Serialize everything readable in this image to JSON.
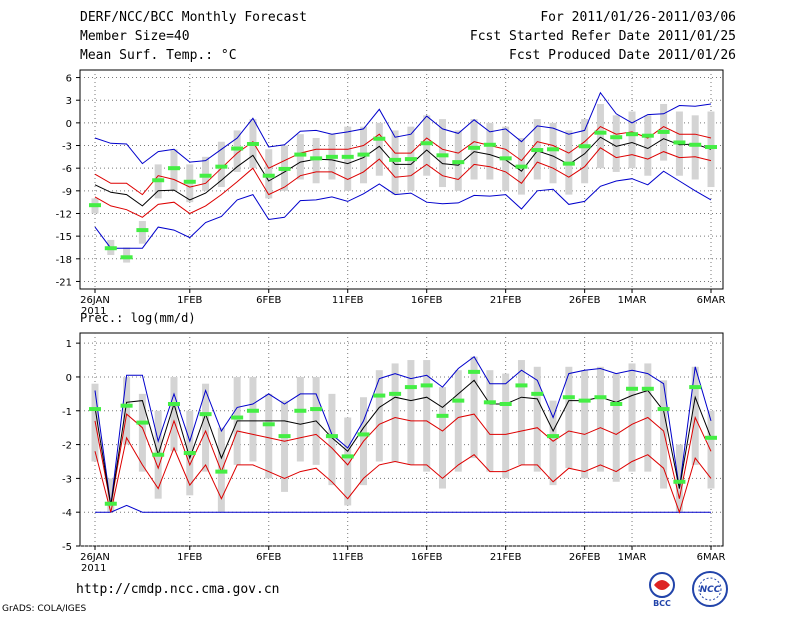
{
  "header": {
    "title": "DERF/NCC/BCC Monthly Forecast",
    "member_size": "Member Size=40",
    "variable": "Mean Surf. Temp.: °C",
    "period": "For 2011/01/26-2011/03/06",
    "started": "Fcst Started Refer Date 2011/01/25",
    "produced": "Fcst Produced Date 2011/01/26"
  },
  "footer": {
    "url": "http://cmdp.ncc.cma.gov.cn",
    "credit": "GrADS: COLA/IGES",
    "logo_bcc": "BCC",
    "logo_ncc": "NCC"
  },
  "colors": {
    "box": "#d4d4d4",
    "median": "#44ee44",
    "mean": "#000000",
    "inner": "#dd0000",
    "outer": "#0000cc",
    "grid": "#777777"
  },
  "chart_data": [
    {
      "type": "box",
      "title": "Mean Surf. Temp.: °C",
      "ylim": [
        -22,
        7
      ],
      "yticks": [
        6,
        3,
        0,
        -3,
        -6,
        -9,
        -12,
        -15,
        -18,
        -21
      ],
      "xtick_labels": [
        {
          "day": 0,
          "label": "26JAN",
          "sub": "2011"
        },
        {
          "day": 6,
          "label": "1FEB"
        },
        {
          "day": 11,
          "label": "6FEB"
        },
        {
          "day": 16,
          "label": "11FEB"
        },
        {
          "day": 21,
          "label": "16FEB"
        },
        {
          "day": 26,
          "label": "21FEB"
        },
        {
          "day": 31,
          "label": "26FEB"
        },
        {
          "day": 34,
          "label": "1MAR"
        },
        {
          "day": 39,
          "label": "6MAR"
        }
      ],
      "median": [
        -10.9,
        -16.6,
        -17.8,
        -14.2,
        -7.6,
        -6,
        -7.8,
        -7,
        -5.8,
        -3.4,
        -2.8,
        -7,
        -6.1,
        -4.2,
        -4.7,
        -4.5,
        -4.5,
        -4.2,
        -2.1,
        -4.9,
        -4.8,
        -2.7,
        -4.3,
        -5.2,
        -3.3,
        -2.9,
        -4.7,
        -5.8,
        -3.6,
        -3.5,
        -5.4,
        -3.1,
        -1.3,
        -1.9,
        -1.5,
        -1.7,
        -1.2,
        -2.6,
        -2.9,
        -3.2
      ],
      "box_low": [
        -12,
        -17.5,
        -18.5,
        -16,
        -10,
        -9,
        -10.5,
        -9,
        -8.5,
        -6.5,
        -6,
        -10,
        -9,
        -7.5,
        -8,
        -7.5,
        -9,
        -8,
        -7,
        -9.5,
        -9,
        -7,
        -8.5,
        -9,
        -7.5,
        -7.5,
        -9,
        -9.5,
        -7.5,
        -8,
        -9.5,
        -8,
        -6,
        -6.5,
        -6,
        -7,
        -5,
        -7,
        -7.5,
        -8.5
      ],
      "box_high": [
        -10,
        -15.5,
        -16.5,
        -13,
        -5.5,
        -3.5,
        -5.5,
        -4.5,
        -2.5,
        -1,
        0.5,
        -3.5,
        -3,
        -1.5,
        -2,
        -1.5,
        -0.5,
        -0.5,
        0,
        -1,
        -0.5,
        1,
        0.5,
        -1,
        0.5,
        0,
        -0.5,
        -2,
        0.5,
        0,
        -1,
        0.5,
        2.5,
        1,
        1.5,
        1,
        2.5,
        1.5,
        1,
        1.5
      ],
      "mean": [
        -8.2,
        -9.2,
        -9.5,
        -11,
        -9,
        -8.9,
        -10.2,
        -9.3,
        -7.6,
        -5.8,
        -4.3,
        -7.7,
        -6.5,
        -5.2,
        -4.8,
        -4.9,
        -5.4,
        -4.6,
        -3.1,
        -5.5,
        -5.5,
        -3.6,
        -5.4,
        -5.6,
        -3.8,
        -4.2,
        -4.9,
        -6.4,
        -3.7,
        -4.4,
        -5.5,
        -4.1,
        -1.9,
        -3.1,
        -2.6,
        -3.4,
        -2.1,
        -2.9,
        -2.8,
        -3.5
      ],
      "inner_high": [
        -6.8,
        -8,
        -8,
        -9.5,
        -7,
        -7.5,
        -8.5,
        -8,
        -6,
        -4,
        -2.5,
        -6,
        -5,
        -4,
        -3.5,
        -3.5,
        -3.5,
        -3,
        -1.5,
        -4,
        -4,
        -2,
        -3.5,
        -4,
        -2.5,
        -3,
        -3.5,
        -5,
        -2.5,
        -3,
        -4,
        -2.5,
        -0.5,
        -1.5,
        -1.2,
        -2,
        -0.5,
        -1.5,
        -1.5,
        -2
      ],
      "inner_low": [
        -9.8,
        -11,
        -11.5,
        -12.5,
        -10.8,
        -10.5,
        -12,
        -11,
        -9.5,
        -7.8,
        -6,
        -9.5,
        -8.5,
        -7,
        -6.5,
        -6.5,
        -7.5,
        -6.5,
        -4.8,
        -7.2,
        -7,
        -5.5,
        -7,
        -7.5,
        -5.5,
        -5.8,
        -6.5,
        -8,
        -5.2,
        -6,
        -7.2,
        -5.8,
        -3.3,
        -4.6,
        -4.2,
        -4.8,
        -3.8,
        -4.6,
        -4.5,
        -5
      ],
      "outer_high": [
        -2,
        -2.7,
        -2.8,
        -5.4,
        -3.8,
        -3.5,
        -5.2,
        -5,
        -3.5,
        -2,
        0.6,
        -3.2,
        -2.9,
        -1.1,
        -1,
        -1.5,
        -1.2,
        -0.8,
        1.8,
        -1.9,
        -1.5,
        0.9,
        -0.8,
        -1.4,
        0.4,
        -1.2,
        -0.8,
        -2.5,
        -0.4,
        -0.7,
        -1.5,
        -1,
        4,
        1.2,
        0,
        1.1,
        1.2,
        2.3,
        2.2,
        2.5
      ],
      "outer_low": [
        -13.8,
        -16.6,
        -16.6,
        -16.6,
        -13.8,
        -14.2,
        -15.2,
        -13.2,
        -12.4,
        -10.2,
        -9.5,
        -12.8,
        -12.5,
        -10.3,
        -10.2,
        -9.8,
        -10.4,
        -9.4,
        -8.1,
        -9.5,
        -9.3,
        -10.5,
        -10.7,
        -10.6,
        -9.6,
        -9.7,
        -9.5,
        -11.4,
        -9,
        -8.8,
        -10.8,
        -10.4,
        -8.4,
        -7.7,
        -7.4,
        -8.2,
        -6.4,
        -7.7,
        -9,
        -10.2
      ]
    },
    {
      "type": "box",
      "title": "Prec.: log(mm/d)",
      "ylim": [
        -5,
        1.3
      ],
      "yticks": [
        1,
        0,
        -1,
        -2,
        -3,
        -4,
        -5
      ],
      "xtick_labels": [
        {
          "day": 0,
          "label": "26JAN",
          "sub": "2011"
        },
        {
          "day": 6,
          "label": "1FEB"
        },
        {
          "day": 11,
          "label": "6FEB"
        },
        {
          "day": 16,
          "label": "11FEB"
        },
        {
          "day": 21,
          "label": "16FEB"
        },
        {
          "day": 26,
          "label": "21FEB"
        },
        {
          "day": 31,
          "label": "26FEB"
        },
        {
          "day": 34,
          "label": "1MAR"
        },
        {
          "day": 39,
          "label": "6MAR"
        }
      ],
      "median": [
        -0.95,
        -3.75,
        -0.85,
        -1.35,
        -2.3,
        -0.8,
        -2.25,
        -1.1,
        -2.8,
        -1.2,
        -1.0,
        -1.4,
        -1.75,
        -1.0,
        -0.95,
        -1.75,
        -2.35,
        -1.7,
        -0.55,
        -0.5,
        -0.3,
        -0.25,
        -1.15,
        -0.7,
        0.15,
        -0.75,
        -0.8,
        -0.25,
        -0.5,
        -1.75,
        -0.6,
        -0.7,
        -0.6,
        -0.8,
        -0.35,
        -0.35,
        -0.95,
        -3.1,
        -0.3,
        -1.8
      ],
      "box_low": [
        -2.5,
        -4,
        -2,
        -2.8,
        -3.6,
        -2.2,
        -3.5,
        -2.8,
        -4,
        -2.6,
        -2.5,
        -3,
        -3.4,
        -2.5,
        -2.6,
        -3.2,
        -3.8,
        -3.2,
        -2.5,
        -2.5,
        -2.6,
        -2.8,
        -3.3,
        -2.8,
        -2.4,
        -2.8,
        -3,
        -2.6,
        -2.8,
        -3.2,
        -2.7,
        -3,
        -2.8,
        -3.1,
        -2.8,
        -2.8,
        -3.3,
        -4,
        -2.6,
        -3.3
      ],
      "box_high": [
        -0.2,
        -3,
        0,
        -0.5,
        -1,
        0,
        -1,
        -0.2,
        -1.5,
        0,
        0,
        -0.5,
        -0.7,
        0,
        0,
        -0.5,
        -1.2,
        -0.6,
        0.2,
        0.4,
        0.5,
        0.5,
        -0.3,
        0.2,
        0.6,
        0.2,
        0.1,
        0.5,
        0.3,
        -0.7,
        0.3,
        0.2,
        0.3,
        0.1,
        0.4,
        0.4,
        -0.1,
        -2,
        0.3,
        -1
      ],
      "mean": [
        -0.9,
        -3.8,
        -0.75,
        -0.7,
        -2.3,
        -0.8,
        -2.4,
        -1.1,
        -2.4,
        -1.3,
        -1.3,
        -1.3,
        -1.3,
        -1.4,
        -1.3,
        -1.8,
        -2.2,
        -1.5,
        -0.9,
        -0.6,
        -0.7,
        -0.6,
        -0.9,
        -0.5,
        -0.1,
        -0.8,
        -0.8,
        -0.6,
        -0.65,
        -1.6,
        -0.7,
        -0.7,
        -0.6,
        -0.75,
        -0.55,
        -0.4,
        -1.0,
        -3.3,
        -0.6,
        -1.8
      ],
      "inner_high": [
        -1.3,
        -3.8,
        -1.1,
        -1.5,
        -2.7,
        -1.3,
        -2.6,
        -1.6,
        -2.8,
        -1.6,
        -1.7,
        -1.8,
        -1.9,
        -1.8,
        -1.7,
        -2.1,
        -2.6,
        -1.9,
        -1.4,
        -1.2,
        -1.3,
        -1.3,
        -1.6,
        -1.2,
        -1.1,
        -1.7,
        -1.7,
        -1.6,
        -1.5,
        -1.9,
        -1.6,
        -1.7,
        -1.5,
        -1.7,
        -1.4,
        -1.2,
        -1.6,
        -3.6,
        -1.2,
        -2.2
      ],
      "inner_low": [
        -2.2,
        -4,
        -1.8,
        -2.6,
        -3.3,
        -2.1,
        -3.2,
        -2.6,
        -3.6,
        -2.6,
        -2.6,
        -2.8,
        -3.0,
        -2.8,
        -2.7,
        -3.1,
        -3.6,
        -3.0,
        -2.6,
        -2.5,
        -2.6,
        -2.6,
        -3.0,
        -2.6,
        -2.3,
        -2.8,
        -2.8,
        -2.6,
        -2.6,
        -3.1,
        -2.7,
        -2.8,
        -2.6,
        -2.8,
        -2.5,
        -2.3,
        -2.7,
        -4,
        -2.4,
        -3.0
      ],
      "outer_high": [
        -0.4,
        -3.8,
        0.05,
        0.05,
        -1.9,
        -0.5,
        -1.9,
        -0.4,
        -1.6,
        -0.9,
        -0.8,
        -0.5,
        -0.8,
        -0.5,
        -0.5,
        -1.7,
        -2.1,
        -1.3,
        -0.05,
        0.1,
        -0.05,
        0.05,
        -0.3,
        0.25,
        0.6,
        -0.2,
        -0.2,
        0.2,
        -0.1,
        -1.2,
        0.1,
        0.2,
        0.25,
        0.1,
        0.2,
        0.1,
        -0.2,
        -3.3,
        0.3,
        -1.3
      ],
      "outer_low": [
        -4,
        -4,
        -3.8,
        -4,
        -4,
        -4,
        -4,
        -4,
        -4,
        -4,
        -4,
        -4,
        -4,
        -4,
        -4,
        -4,
        -4,
        -4,
        -4,
        -4,
        -4,
        -4,
        -4,
        -4,
        -4,
        -4,
        -4,
        -4,
        -4,
        -4,
        -4,
        -4,
        -4,
        -4,
        -4,
        -4,
        -4,
        -4,
        -4,
        -4
      ]
    }
  ]
}
